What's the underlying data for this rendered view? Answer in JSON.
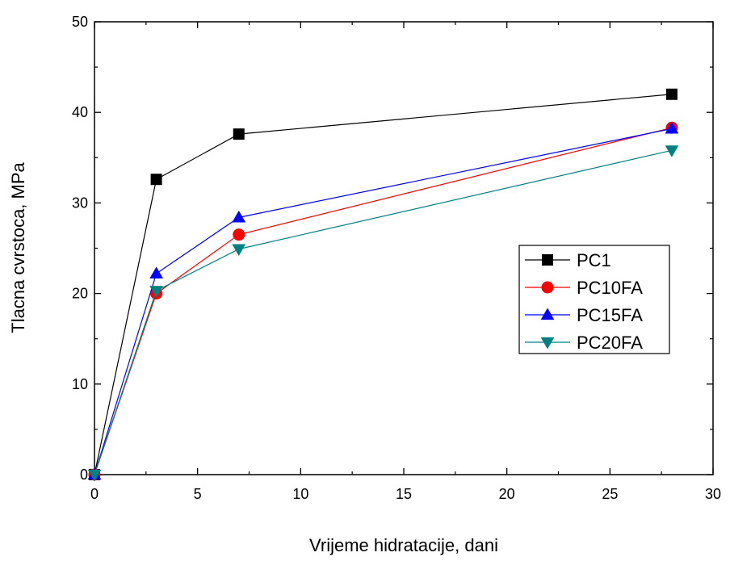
{
  "chart_data": {
    "type": "line",
    "title": "",
    "xlabel": "Vrijeme hidratacije, dani",
    "ylabel": "Tlacna cvrstoca, MPa",
    "xlim": [
      0,
      30
    ],
    "ylim": [
      0,
      50
    ],
    "xticks": [
      0,
      5,
      10,
      15,
      20,
      25,
      30
    ],
    "yticks": [
      0,
      10,
      20,
      30,
      40,
      50
    ],
    "grid": false,
    "legend_position": "right",
    "x": [
      0,
      3,
      7,
      28
    ],
    "series": [
      {
        "name": "PC1",
        "values": [
          0,
          32.6,
          37.6,
          42.0
        ],
        "color": "#000000",
        "marker": "square"
      },
      {
        "name": "PC10FA",
        "values": [
          0,
          20.0,
          26.5,
          38.3
        ],
        "color": "#ff0000",
        "marker": "circle"
      },
      {
        "name": "PC15FA",
        "values": [
          0,
          22.2,
          28.4,
          38.2
        ],
        "color": "#0000ff",
        "marker": "triangle-up"
      },
      {
        "name": "PC20FA",
        "values": [
          0,
          20.3,
          24.9,
          35.8
        ],
        "color": "#008080",
        "marker": "triangle-down"
      }
    ]
  }
}
